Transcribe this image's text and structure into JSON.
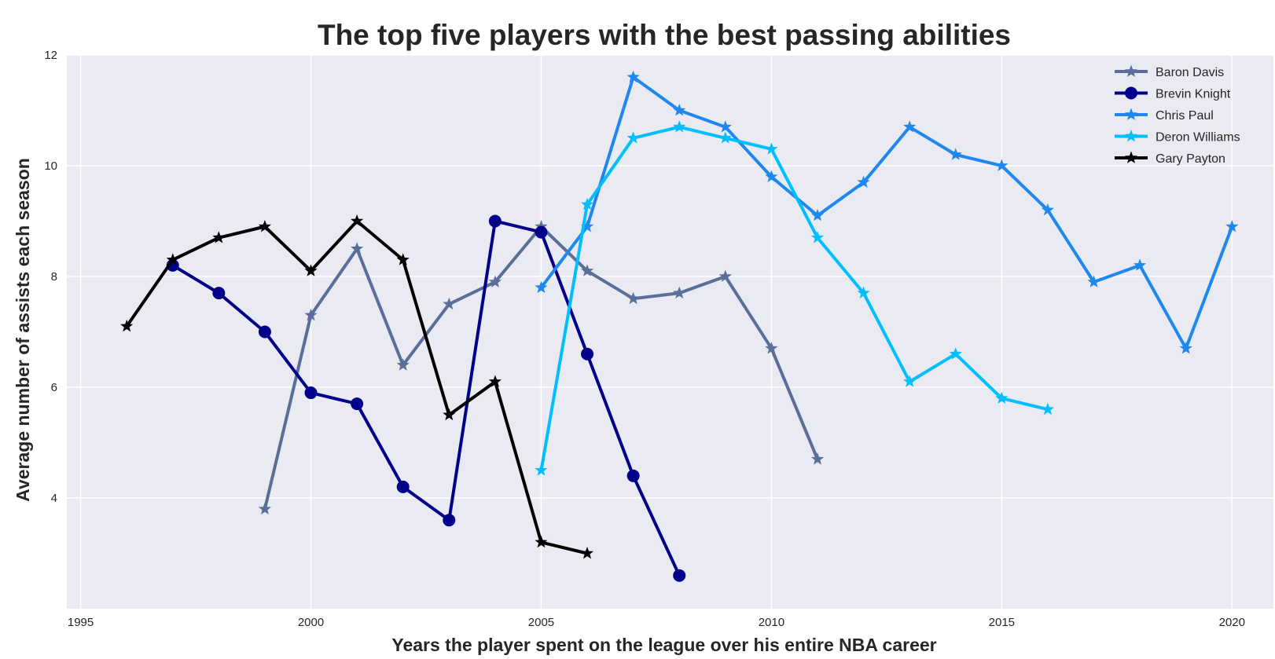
{
  "chart_data": {
    "type": "line",
    "title": "The top five players with the best passing abilities",
    "xlabel": "Years the player spent on the league over his entire NBA career",
    "ylabel": "Average number of assists each season",
    "xlim": [
      1994.7,
      2020.9
    ],
    "ylim": [
      2.0,
      12.0
    ],
    "xticks": [
      1995,
      2000,
      2005,
      2010,
      2015,
      2020
    ],
    "yticks": [
      4,
      6,
      8,
      10,
      12
    ],
    "grid": true,
    "legend_position": "top-right",
    "background": "#eaeaf2",
    "series": [
      {
        "name": "Baron Davis",
        "color": "#5a6e9a",
        "marker": "star",
        "x": [
          1999,
          2000,
          2001,
          2002,
          2003,
          2004,
          2005,
          2006,
          2007,
          2008,
          2009,
          2010,
          2011
        ],
        "values": [
          3.8,
          7.3,
          8.5,
          6.4,
          7.5,
          7.9,
          8.9,
          8.1,
          7.6,
          7.7,
          8.0,
          6.7,
          4.7
        ]
      },
      {
        "name": "Brevin Knight",
        "color": "#00008b",
        "marker": "circle",
        "x": [
          1997,
          1998,
          1999,
          2000,
          2001,
          2002,
          2003,
          2004,
          2005,
          2006,
          2007,
          2008
        ],
        "values": [
          8.2,
          7.7,
          7.0,
          5.9,
          5.7,
          4.2,
          3.6,
          9.0,
          8.8,
          6.6,
          4.4,
          2.6
        ]
      },
      {
        "name": "Chris Paul",
        "color": "#1e88f0",
        "marker": "star",
        "x": [
          2005,
          2006,
          2007,
          2008,
          2009,
          2010,
          2011,
          2012,
          2013,
          2014,
          2015,
          2016,
          2017,
          2018,
          2019,
          2020
        ],
        "values": [
          7.8,
          8.9,
          11.6,
          11.0,
          10.7,
          9.8,
          9.1,
          9.7,
          10.7,
          10.2,
          10.0,
          9.2,
          7.9,
          8.2,
          6.7,
          8.9
        ]
      },
      {
        "name": "Deron Williams",
        "color": "#00bfff",
        "marker": "star",
        "x": [
          2005,
          2006,
          2007,
          2008,
          2009,
          2010,
          2011,
          2012,
          2013,
          2014,
          2015,
          2016
        ],
        "values": [
          4.5,
          9.3,
          10.5,
          10.7,
          10.5,
          10.3,
          8.7,
          7.7,
          6.1,
          6.6,
          5.8,
          5.6
        ]
      },
      {
        "name": "Gary Payton",
        "color": "#000000",
        "marker": "star",
        "x": [
          1996,
          1997,
          1998,
          1999,
          2000,
          2001,
          2002,
          2003,
          2004,
          2005,
          2006
        ],
        "values": [
          7.1,
          8.3,
          8.7,
          8.9,
          8.1,
          9.0,
          8.3,
          5.5,
          6.1,
          3.2,
          3.0
        ]
      }
    ]
  }
}
